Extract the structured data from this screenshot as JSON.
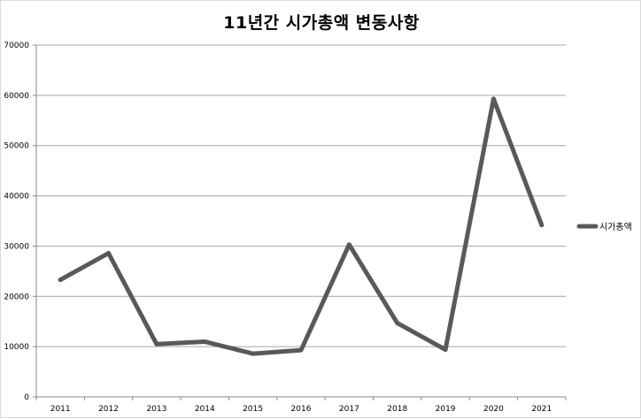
{
  "chart_data": {
    "type": "line",
    "title": "11년간 시가총액 변동사항",
    "xlabel": "",
    "ylabel": "",
    "categories": [
      "2011",
      "2012",
      "2013",
      "2014",
      "2015",
      "2016",
      "2017",
      "2018",
      "2019",
      "2020",
      "2021"
    ],
    "series": [
      {
        "name": "시가총액",
        "values": [
          23300,
          28600,
          10500,
          11000,
          8600,
          9300,
          30300,
          14700,
          9400,
          59300,
          34200
        ],
        "color": "#595959"
      }
    ],
    "ylim": [
      0,
      70000
    ],
    "yticks": [
      0,
      10000,
      20000,
      30000,
      40000,
      50000,
      60000,
      70000
    ],
    "grid": true,
    "legend_position": "right"
  }
}
